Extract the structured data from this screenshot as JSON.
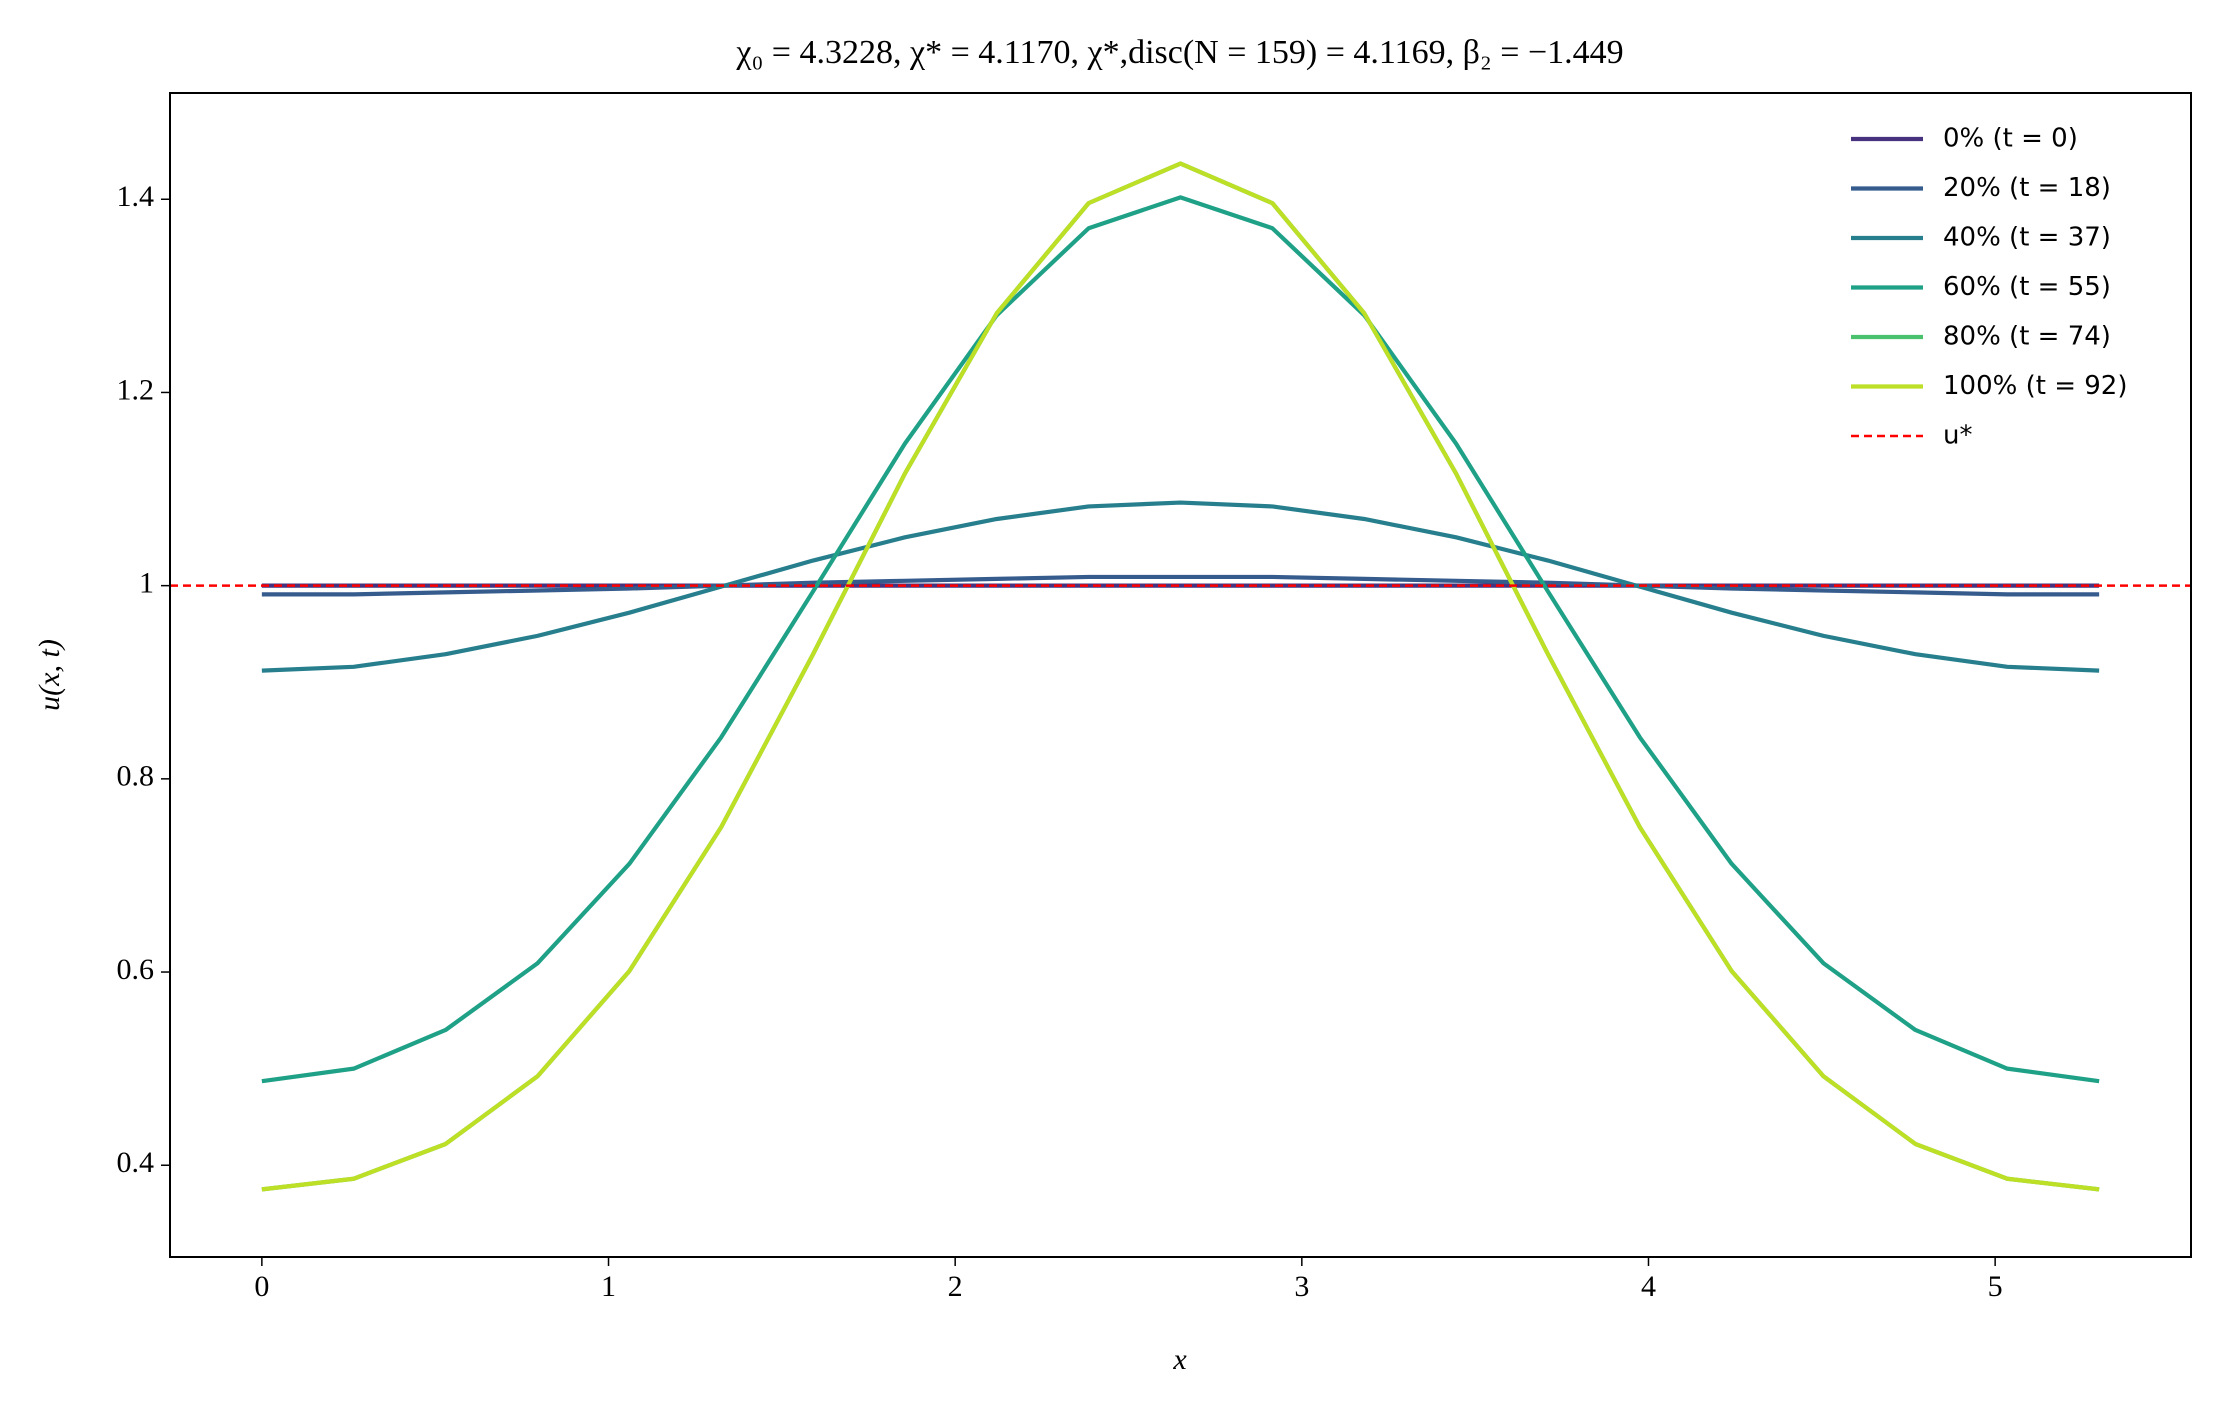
{
  "chart_data": {
    "type": "line",
    "title": "χ₀ = 4.3228,  χ* = 4.1170,  χ*,disc(N = 159) = 4.1169,  β₂ = −1.449",
    "xlabel": "x",
    "ylabel": "u(x, t)",
    "x": [
      0,
      0.265,
      0.53,
      0.795,
      1.06,
      1.325,
      1.59,
      1.855,
      2.12,
      2.385,
      2.65,
      2.915,
      3.18,
      3.445,
      3.71,
      3.975,
      4.24,
      4.505,
      4.77,
      5.035,
      5.3
    ],
    "series": [
      {
        "name": "0% (t = 0)",
        "color": "#46327e",
        "values": [
          1.0,
          1.0,
          1.0,
          1.0,
          1.0,
          1.0,
          1.0,
          1.0,
          1.0,
          1.0,
          1.0,
          1.0,
          1.0,
          1.0,
          1.0,
          1.0,
          1.0,
          1.0,
          1.0,
          1.0,
          1.0
        ]
      },
      {
        "name": "20% (t = 18)",
        "color": "#365c8d",
        "values": [
          0.991,
          0.991,
          0.993,
          0.995,
          0.997,
          1.0,
          1.003,
          1.005,
          1.007,
          1.009,
          1.009,
          1.009,
          1.007,
          1.005,
          1.003,
          1.0,
          0.997,
          0.995,
          0.993,
          0.991,
          0.991
        ]
      },
      {
        "name": "40% (t = 37)",
        "color": "#277f8e",
        "values": [
          0.912,
          0.916,
          0.929,
          0.948,
          0.972,
          0.999,
          1.026,
          1.05,
          1.069,
          1.082,
          1.086,
          1.082,
          1.069,
          1.05,
          1.026,
          0.999,
          0.972,
          0.948,
          0.929,
          0.916,
          0.912
        ]
      },
      {
        "name": "60% (t = 55)",
        "color": "#1fa187",
        "values": [
          0.487,
          0.5,
          0.54,
          0.609,
          0.712,
          0.843,
          0.994,
          1.147,
          1.28,
          1.37,
          1.402,
          1.37,
          1.28,
          1.147,
          0.994,
          0.843,
          0.712,
          0.609,
          0.54,
          0.5,
          0.487
        ]
      },
      {
        "name": "80% (t = 74)",
        "color": "#4ac16d",
        "values": [
          0.375,
          0.386,
          0.422,
          0.492,
          0.601,
          0.75,
          0.929,
          1.116,
          1.282,
          1.396,
          1.437,
          1.396,
          1.282,
          1.116,
          0.929,
          0.75,
          0.601,
          0.492,
          0.422,
          0.386,
          0.375
        ]
      },
      {
        "name": "100% (t = 92)",
        "color": "#bddf26",
        "values": [
          0.375,
          0.386,
          0.422,
          0.492,
          0.601,
          0.75,
          0.929,
          1.116,
          1.282,
          1.396,
          1.437,
          1.396,
          1.282,
          1.116,
          0.929,
          0.75,
          0.601,
          0.492,
          0.422,
          0.386,
          0.375
        ]
      }
    ],
    "hline": {
      "name": "u*",
      "value": 1.0,
      "color": "#ff0000"
    },
    "xlim": [
      -0.265,
      5.565
    ],
    "xticks": [
      0,
      1,
      2,
      3,
      4,
      5
    ],
    "ylim": [
      0.305,
      1.51
    ],
    "yticks": [
      0.4,
      0.6,
      0.8,
      1.0,
      1.2,
      1.4
    ],
    "legend": "upper right",
    "grid": false
  }
}
